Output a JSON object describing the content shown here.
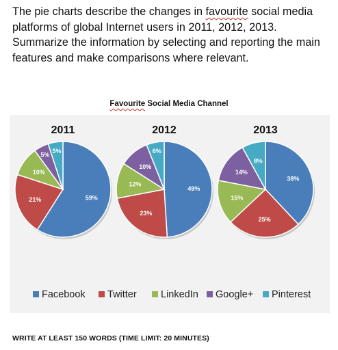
{
  "prompt": {
    "line1_a": "The pie charts describe the changes in ",
    "line1_b": "favourite",
    "line1_c": " social media",
    "line2": "platforms of global Internet users in 2011, 2012, 2013.",
    "line3": "Summarize the information by selecting and reporting the main",
    "line4": "features and make comparisons where relevant."
  },
  "footer": "WRITE AT LEAST 150 WORDS (TIME LIMIT: 20 MINUTES)",
  "chart_data": {
    "type": "pie",
    "title_a": "Favourite",
    "title_b": " Social Media Channel",
    "legend_position": "bottom",
    "categories": [
      "Facebook",
      "Twitter",
      "LinkedIn",
      "Google+",
      "Pinterest"
    ],
    "colors": [
      "#4a7ebb",
      "#be4b48",
      "#98b954",
      "#7d60a0",
      "#46aac5"
    ],
    "series": [
      {
        "name": "2011",
        "values": [
          59,
          21,
          10,
          5,
          5
        ]
      },
      {
        "name": "2012",
        "values": [
          49,
          23,
          12,
          10,
          6
        ]
      },
      {
        "name": "2013",
        "values": [
          38,
          25,
          15,
          14,
          8
        ]
      }
    ]
  }
}
